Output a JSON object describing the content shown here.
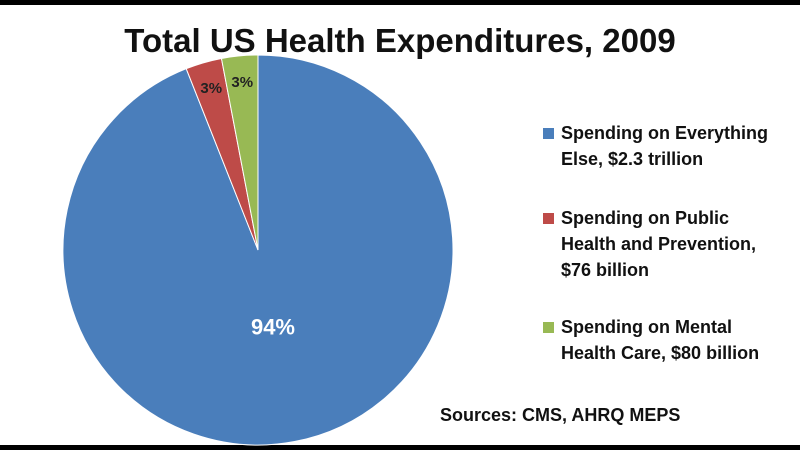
{
  "chart_data": {
    "type": "pie",
    "title": "Total US Health Expenditures, 2009",
    "categories": [
      "Spending on Everything Else, $2.3 trillion",
      "Spending on Public Health and Prevention, $76 billion",
      "Spending on Mental Health Care, $80 billion"
    ],
    "values": [
      94,
      3,
      3
    ],
    "value_labels": [
      "94%",
      "3%",
      "3%"
    ],
    "colors": [
      "#4a7ebb",
      "#be4b48",
      "#98b954"
    ],
    "legend": "right",
    "annotation": "Sources: CMS, AHRQ MEPS"
  }
}
